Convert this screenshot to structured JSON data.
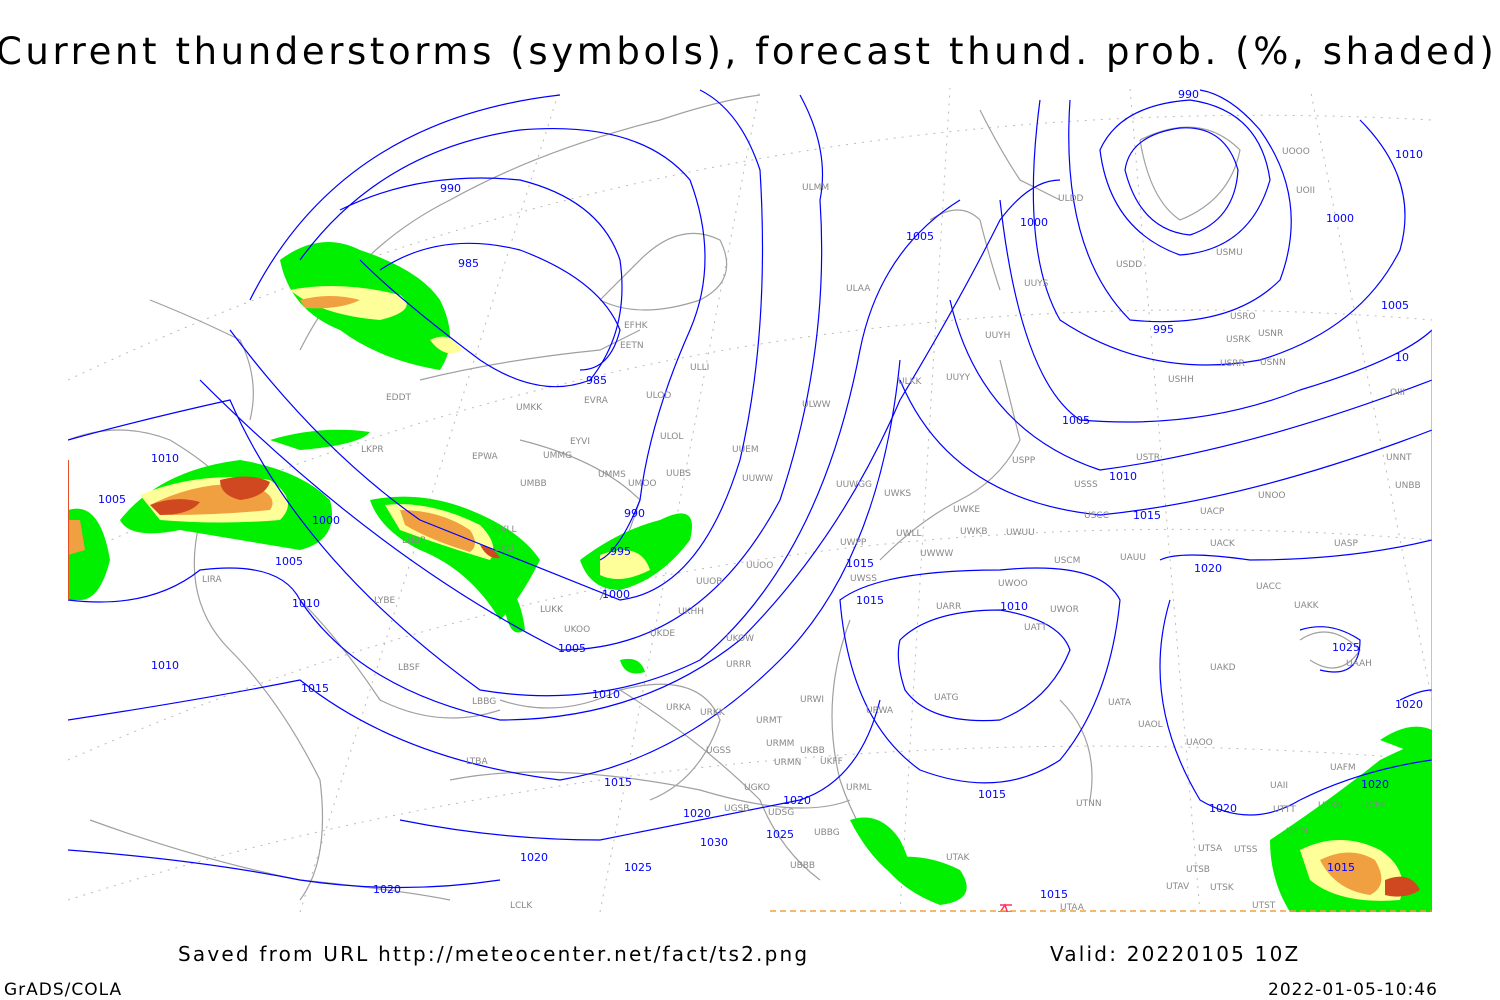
{
  "title": "Current thunderstorms (symbols), forecast thund. prob. (%, shaded)",
  "footer": {
    "saved_from": "Saved from URL http://meteocenter.net/fact/ts2.png",
    "valid": "Valid: 20220105 10Z",
    "credit": "GrADS/COLA",
    "timestamp": "2022-01-05-10:46"
  },
  "colors": {
    "isobar": "#0000ff",
    "coastline": "#a0a0a0",
    "prob_low": "#00f000",
    "prob_mid": "#ffff99",
    "prob_high": "#f0a040",
    "prob_max": "#d04820"
  },
  "isobar_labels": [
    "990",
    "985",
    "985",
    "990",
    "995",
    "1000",
    "1005",
    "1010",
    "1015",
    "1020",
    "1025",
    "1030",
    "1025",
    "1020",
    "1020",
    "1015",
    "1010",
    "1010",
    "1005",
    "1000",
    "1005",
    "1010",
    "1005",
    "1000",
    "990",
    "995",
    "1000",
    "1005",
    "1010",
    "1005",
    "1010",
    "1015",
    "1020",
    "1015",
    "1015",
    "1010",
    "1015",
    "1020",
    "1025",
    "1020",
    "1020",
    "1015",
    "1015",
    "1020",
    "10"
  ],
  "stations": [
    "EFHK",
    "EETN",
    "EVRA",
    "ULLI",
    "ULOD",
    "ULOL",
    "UMKK",
    "EYVI",
    "EPWA",
    "UMMG",
    "UMMS",
    "UMOO",
    "UUBS",
    "UUEM",
    "UUWW",
    "ULWW",
    "ULAA",
    "ULMM",
    "UUYH",
    "UUYY",
    "ULKK",
    "UUYS",
    "USDD",
    "USMU",
    "UOOO",
    "UOII",
    "ULDD",
    "USRO",
    "USRK",
    "USNR",
    "USRR",
    "USNN",
    "USHH",
    "USPP",
    "USSS",
    "USTR",
    "UUWGG",
    "UWKS",
    "UWKE",
    "UWKB",
    "UWUU",
    "UWLL",
    "UWWW",
    "UWPP",
    "UWSS",
    "URWI",
    "URWA",
    "UUOB",
    "UUOO",
    "UKHH",
    "UKDE",
    "UKOO",
    "UKOW",
    "URRR",
    "URKA",
    "URKK",
    "URMT",
    "URMM",
    "URMN",
    "URML",
    "UGSS",
    "UGKO",
    "UGSB",
    "UDSG",
    "UBBG",
    "UBBB",
    "UTAK",
    "UTAA",
    "UATG",
    "UARR",
    "UWOO",
    "UWOR",
    "UATT",
    "UATA",
    "UAOL",
    "UAOO",
    "UAKD",
    "UACC",
    "UAKK",
    "UACK",
    "UAUU",
    "USCC",
    "USCM",
    "UNOO",
    "UACP",
    "UASP",
    "UNNT",
    "UNBB",
    "UAAH",
    "UTNN",
    "UTSA",
    "UTSS",
    "UTSB",
    "UTSK",
    "UTAV",
    "UTST",
    "UTDL",
    "UTTT",
    "UTKN",
    "UCFF",
    "UAII",
    "UAFM",
    "LKPR",
    "UMBB",
    "UKLL",
    "UKLI",
    "LHBP",
    "LUKK",
    "LIRA",
    "LYBE",
    "LBSF",
    "LBBG",
    "LTBA",
    "LCLK",
    "EDDT",
    "UKBB",
    "UKFF",
    "OIII"
  ]
}
